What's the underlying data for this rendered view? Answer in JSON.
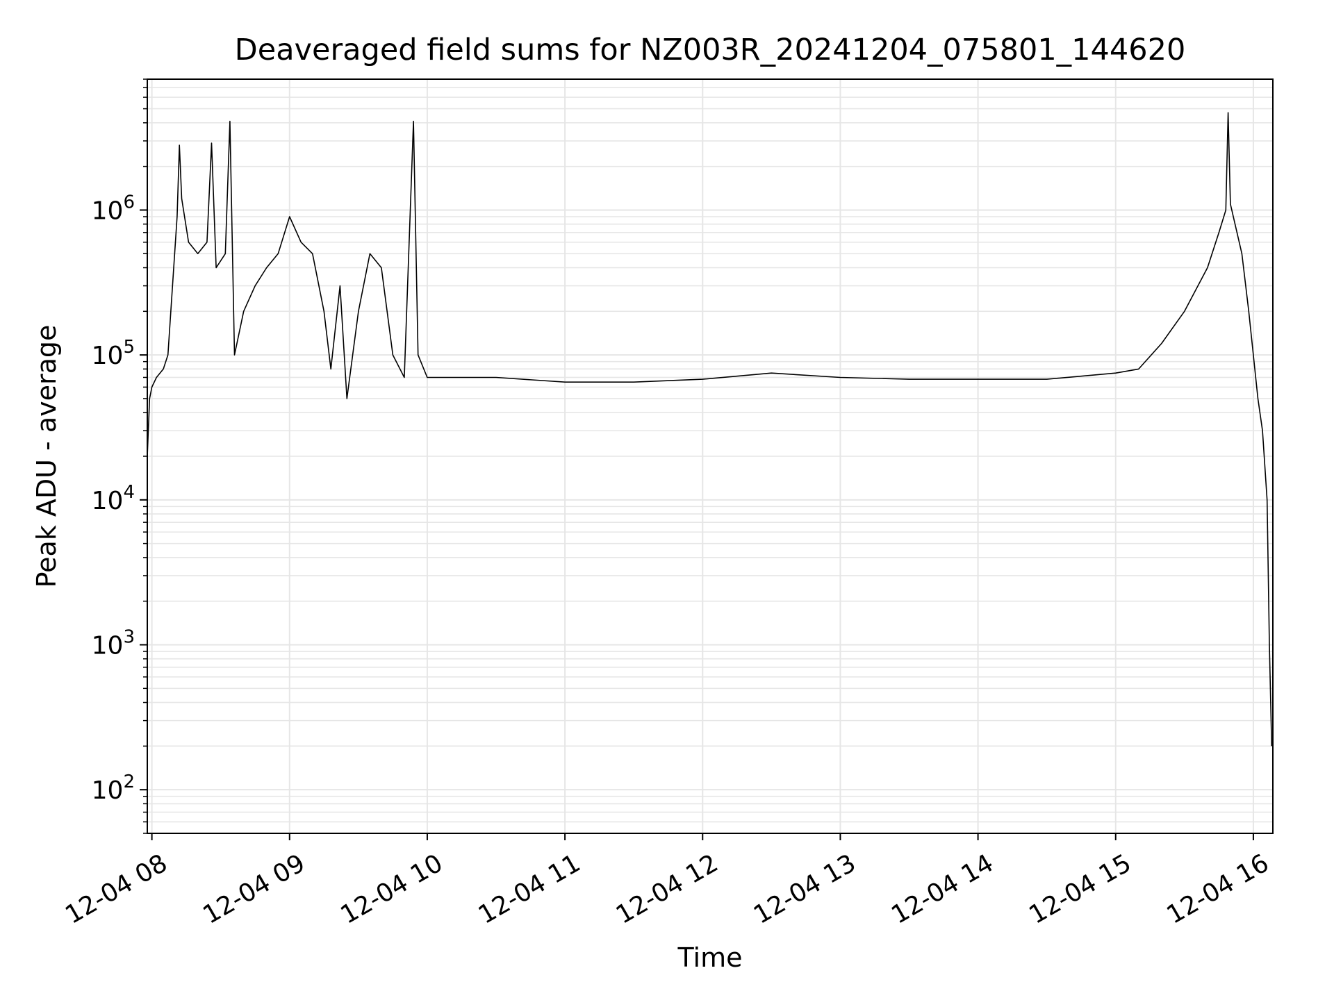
{
  "chart_data": {
    "type": "line",
    "title": "Deaveraged field sums for NZ003R_20241204_075801_144620",
    "xlabel": "Time",
    "ylabel": "Peak ADU - average",
    "yscale": "log",
    "ylim": [
      50,
      8000000
    ],
    "xlim": [
      "2024-12-04 07:58:00",
      "2024-12-04 16:08:30"
    ],
    "grid": true,
    "line_color": "#000000",
    "grid_color": "#e6e6e6",
    "x_ticks": [
      {
        "t": "2024-12-04 08:00",
        "label": "12-04 08"
      },
      {
        "t": "2024-12-04 09:00",
        "label": "12-04 09"
      },
      {
        "t": "2024-12-04 10:00",
        "label": "12-04 10"
      },
      {
        "t": "2024-12-04 11:00",
        "label": "12-04 11"
      },
      {
        "t": "2024-12-04 12:00",
        "label": "12-04 12"
      },
      {
        "t": "2024-12-04 13:00",
        "label": "12-04 13"
      },
      {
        "t": "2024-12-04 14:00",
        "label": "12-04 14"
      },
      {
        "t": "2024-12-04 15:00",
        "label": "12-04 15"
      },
      {
        "t": "2024-12-04 16:00",
        "label": "12-04 16"
      }
    ],
    "y_ticks": [
      {
        "v": 100,
        "base": "10",
        "exp": "2"
      },
      {
        "v": 1000,
        "base": "10",
        "exp": "3"
      },
      {
        "v": 10000,
        "base": "10",
        "exp": "4"
      },
      {
        "v": 100000,
        "base": "10",
        "exp": "5"
      },
      {
        "v": 1000000,
        "base": "10",
        "exp": "6"
      }
    ],
    "series": [
      {
        "points": [
          [
            "2024-12-04 07:58",
            20000
          ],
          [
            "2024-12-04 07:59",
            50000
          ],
          [
            "2024-12-04 08:00",
            60000
          ],
          [
            "2024-12-04 08:02",
            70000
          ],
          [
            "2024-12-04 08:05",
            80000
          ],
          [
            "2024-12-04 08:07",
            100000
          ],
          [
            "2024-12-04 08:09",
            300000
          ],
          [
            "2024-12-04 08:11",
            900000
          ],
          [
            "2024-12-04 08:12",
            2800000
          ],
          [
            "2024-12-04 08:13",
            1200000
          ],
          [
            "2024-12-04 08:16",
            600000
          ],
          [
            "2024-12-04 08:20",
            500000
          ],
          [
            "2024-12-04 08:24",
            600000
          ],
          [
            "2024-12-04 08:26",
            2900000
          ],
          [
            "2024-12-04 08:28",
            400000
          ],
          [
            "2024-12-04 08:32",
            500000
          ],
          [
            "2024-12-04 08:34",
            4100000
          ],
          [
            "2024-12-04 08:36",
            100000
          ],
          [
            "2024-12-04 08:40",
            200000
          ],
          [
            "2024-12-04 08:45",
            300000
          ],
          [
            "2024-12-04 08:50",
            400000
          ],
          [
            "2024-12-04 08:55",
            500000
          ],
          [
            "2024-12-04 09:00",
            900000
          ],
          [
            "2024-12-04 09:05",
            600000
          ],
          [
            "2024-12-04 09:10",
            500000
          ],
          [
            "2024-12-04 09:15",
            200000
          ],
          [
            "2024-12-04 09:18",
            80000
          ],
          [
            "2024-12-04 09:22",
            300000
          ],
          [
            "2024-12-04 09:25",
            50000
          ],
          [
            "2024-12-04 09:30",
            200000
          ],
          [
            "2024-12-04 09:35",
            500000
          ],
          [
            "2024-12-04 09:40",
            400000
          ],
          [
            "2024-12-04 09:45",
            100000
          ],
          [
            "2024-12-04 09:50",
            70000
          ],
          [
            "2024-12-04 09:54",
            4100000
          ],
          [
            "2024-12-04 09:56",
            100000
          ],
          [
            "2024-12-04 10:00",
            70000
          ],
          [
            "2024-12-04 10:30",
            70000
          ],
          [
            "2024-12-04 11:00",
            65000
          ],
          [
            "2024-12-04 11:30",
            65000
          ],
          [
            "2024-12-04 12:00",
            68000
          ],
          [
            "2024-12-04 12:30",
            75000
          ],
          [
            "2024-12-04 13:00",
            70000
          ],
          [
            "2024-12-04 13:30",
            68000
          ],
          [
            "2024-12-04 14:00",
            68000
          ],
          [
            "2024-12-04 14:30",
            68000
          ],
          [
            "2024-12-04 15:00",
            75000
          ],
          [
            "2024-12-04 15:10",
            80000
          ],
          [
            "2024-12-04 15:20",
            120000
          ],
          [
            "2024-12-04 15:30",
            200000
          ],
          [
            "2024-12-04 15:40",
            400000
          ],
          [
            "2024-12-04 15:45",
            700000
          ],
          [
            "2024-12-04 15:48",
            1000000
          ],
          [
            "2024-12-04 15:49",
            4700000
          ],
          [
            "2024-12-04 15:50",
            1100000
          ],
          [
            "2024-12-04 15:55",
            500000
          ],
          [
            "2024-12-04 15:58",
            200000
          ],
          [
            "2024-12-04 16:00",
            100000
          ],
          [
            "2024-12-04 16:02",
            50000
          ],
          [
            "2024-12-04 16:04",
            30000
          ],
          [
            "2024-12-04 16:06",
            10000
          ],
          [
            "2024-12-04 16:07",
            1000
          ],
          [
            "2024-12-04 16:08",
            200
          ]
        ]
      }
    ]
  }
}
